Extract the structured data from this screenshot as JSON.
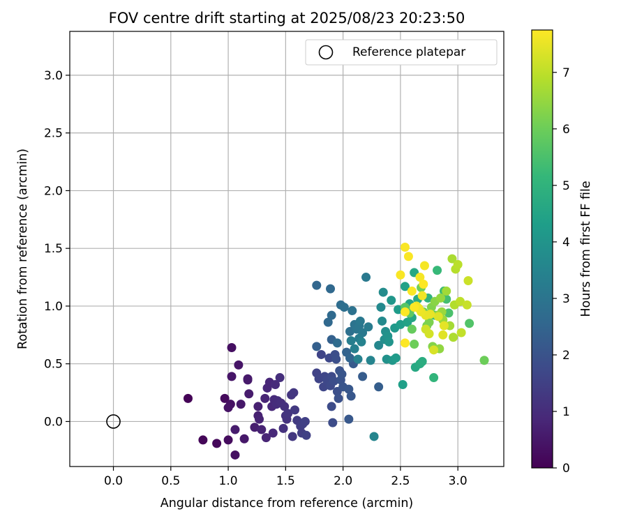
{
  "chart_data": {
    "type": "scatter",
    "title": "FOV centre drift starting at 2025/08/23 20:23:50",
    "xlabel": "Angular distance from reference (arcmin)",
    "ylabel": "Rotation from reference (arcmin)",
    "xlim": [
      -0.38,
      3.4
    ],
    "ylim": [
      -0.39,
      3.38
    ],
    "xticks": [
      "0.0",
      "0.5",
      "1.0",
      "1.5",
      "2.0",
      "2.5",
      "3.0"
    ],
    "xtick_values": [
      0,
      0.5,
      1,
      1.5,
      2,
      2.5,
      3
    ],
    "yticks": [
      "0.0",
      "0.5",
      "1.0",
      "1.5",
      "2.0",
      "2.5",
      "3.0"
    ],
    "ytick_values": [
      0,
      0.5,
      1,
      1.5,
      2,
      2.5,
      3
    ],
    "grid": true,
    "legend": {
      "position": "upper right",
      "entries": [
        "Reference platepar"
      ]
    },
    "reference_point": {
      "x": 0.0,
      "y": 0.0,
      "marker": "open circle"
    },
    "colorbar": {
      "label": "Hours from first FF file",
      "colormap": "viridis",
      "range": [
        0,
        7.75
      ],
      "ticks": [
        "0",
        "1",
        "2",
        "3",
        "4",
        "5",
        "6",
        "7"
      ],
      "tick_values": [
        0,
        1,
        2,
        3,
        4,
        5,
        6,
        7
      ]
    },
    "colormap_stops": [
      "#440154",
      "#482878",
      "#3e4989",
      "#31688e",
      "#26828e",
      "#1f9e89",
      "#35b779",
      "#6ece58",
      "#b5de2b",
      "#fde725"
    ],
    "points": [
      {
        "x": 0.65,
        "y": 0.2,
        "h": 0.05
      },
      {
        "x": 0.78,
        "y": -0.16,
        "h": 0.1
      },
      {
        "x": 0.9,
        "y": -0.19,
        "h": 0.15
      },
      {
        "x": 0.97,
        "y": 0.2,
        "h": 0.2
      },
      {
        "x": 1.0,
        "y": -0.16,
        "h": 0.25
      },
      {
        "x": 1.03,
        "y": 0.64,
        "h": 0.3
      },
      {
        "x": 1.06,
        "y": -0.29,
        "h": 0.3
      },
      {
        "x": 1.02,
        "y": 0.15,
        "h": 0.35
      },
      {
        "x": 1.0,
        "y": 0.12,
        "h": 0.4
      },
      {
        "x": 1.03,
        "y": 0.39,
        "h": 0.45
      },
      {
        "x": 1.09,
        "y": 0.49,
        "h": 0.45
      },
      {
        "x": 1.11,
        "y": 0.15,
        "h": 0.5
      },
      {
        "x": 1.14,
        "y": -0.15,
        "h": 0.5
      },
      {
        "x": 1.17,
        "y": 0.37,
        "h": 0.55
      },
      {
        "x": 1.17,
        "y": 0.36,
        "h": 0.55
      },
      {
        "x": 1.18,
        "y": 0.24,
        "h": 0.6
      },
      {
        "x": 1.06,
        "y": -0.07,
        "h": 0.6
      },
      {
        "x": 1.23,
        "y": -0.05,
        "h": 0.65
      },
      {
        "x": 1.26,
        "y": 0.13,
        "h": 0.7
      },
      {
        "x": 1.26,
        "y": 0.05,
        "h": 0.7
      },
      {
        "x": 1.27,
        "y": 0.02,
        "h": 0.75
      },
      {
        "x": 1.29,
        "y": -0.07,
        "h": 0.75
      },
      {
        "x": 1.32,
        "y": 0.2,
        "h": 0.8
      },
      {
        "x": 1.33,
        "y": -0.14,
        "h": 0.8
      },
      {
        "x": 1.34,
        "y": 0.29,
        "h": 0.85
      },
      {
        "x": 1.36,
        "y": 0.34,
        "h": 0.85
      },
      {
        "x": 1.38,
        "y": 0.13,
        "h": 0.9
      },
      {
        "x": 1.39,
        "y": -0.1,
        "h": 0.9
      },
      {
        "x": 1.4,
        "y": 0.19,
        "h": 0.95
      },
      {
        "x": 1.41,
        "y": 0.32,
        "h": 0.95
      },
      {
        "x": 1.42,
        "y": 0.15,
        "h": 1.0
      },
      {
        "x": 1.43,
        "y": 0.18,
        "h": 1.0
      },
      {
        "x": 1.45,
        "y": 0.38,
        "h": 1.05
      },
      {
        "x": 1.46,
        "y": 0.16,
        "h": 1.05
      },
      {
        "x": 1.48,
        "y": -0.06,
        "h": 1.1
      },
      {
        "x": 1.49,
        "y": 0.13,
        "h": 1.1
      },
      {
        "x": 1.5,
        "y": 0.05,
        "h": 1.15
      },
      {
        "x": 1.51,
        "y": 0.02,
        "h": 1.15
      },
      {
        "x": 1.52,
        "y": 0.07,
        "h": 1.2
      },
      {
        "x": 1.55,
        "y": 0.23,
        "h": 1.2
      },
      {
        "x": 1.56,
        "y": -0.13,
        "h": 1.25
      },
      {
        "x": 1.57,
        "y": 0.25,
        "h": 1.25
      },
      {
        "x": 1.58,
        "y": 0.1,
        "h": 1.3
      },
      {
        "x": 1.6,
        "y": 0.01,
        "h": 1.35
      },
      {
        "x": 1.63,
        "y": -0.04,
        "h": 1.4
      },
      {
        "x": 1.64,
        "y": -0.1,
        "h": 1.4
      },
      {
        "x": 1.65,
        "y": -0.02,
        "h": 1.45
      },
      {
        "x": 1.67,
        "y": 0.0,
        "h": 1.5
      },
      {
        "x": 1.68,
        "y": -0.12,
        "h": 1.5
      },
      {
        "x": 1.77,
        "y": 0.42,
        "h": 1.55
      },
      {
        "x": 1.79,
        "y": 0.37,
        "h": 1.6
      },
      {
        "x": 1.81,
        "y": 0.58,
        "h": 1.6
      },
      {
        "x": 1.83,
        "y": 0.3,
        "h": 1.65
      },
      {
        "x": 1.84,
        "y": 0.39,
        "h": 1.65
      },
      {
        "x": 1.86,
        "y": 0.36,
        "h": 1.7
      },
      {
        "x": 1.88,
        "y": 0.55,
        "h": 1.7
      },
      {
        "x": 1.89,
        "y": 0.31,
        "h": 1.75
      },
      {
        "x": 1.9,
        "y": 0.39,
        "h": 1.75
      },
      {
        "x": 1.9,
        "y": 0.13,
        "h": 1.8
      },
      {
        "x": 1.91,
        "y": -0.01,
        "h": 1.8
      },
      {
        "x": 1.92,
        "y": 0.35,
        "h": 1.85
      },
      {
        "x": 1.93,
        "y": 0.58,
        "h": 1.85
      },
      {
        "x": 1.94,
        "y": 0.54,
        "h": 1.9
      },
      {
        "x": 1.95,
        "y": 0.26,
        "h": 1.9
      },
      {
        "x": 1.96,
        "y": 0.2,
        "h": 1.95
      },
      {
        "x": 1.97,
        "y": 0.44,
        "h": 2.0
      },
      {
        "x": 1.98,
        "y": 0.36,
        "h": 2.0
      },
      {
        "x": 1.99,
        "y": 0.41,
        "h": 2.05
      },
      {
        "x": 2.0,
        "y": 0.3,
        "h": 2.05
      },
      {
        "x": 2.05,
        "y": 0.28,
        "h": 2.1
      },
      {
        "x": 2.07,
        "y": 0.22,
        "h": 2.1
      },
      {
        "x": 2.05,
        "y": 0.02,
        "h": 2.15
      },
      {
        "x": 2.09,
        "y": 0.5,
        "h": 2.2
      },
      {
        "x": 2.17,
        "y": 0.39,
        "h": 2.25
      },
      {
        "x": 2.31,
        "y": 0.3,
        "h": 2.3
      },
      {
        "x": 1.77,
        "y": 0.65,
        "h": 2.35
      },
      {
        "x": 1.9,
        "y": 0.71,
        "h": 2.4
      },
      {
        "x": 2.03,
        "y": 0.6,
        "h": 2.45
      },
      {
        "x": 2.06,
        "y": 0.55,
        "h": 2.5
      },
      {
        "x": 1.77,
        "y": 1.18,
        "h": 2.55
      },
      {
        "x": 1.87,
        "y": 0.86,
        "h": 2.6
      },
      {
        "x": 1.89,
        "y": 1.15,
        "h": 2.6
      },
      {
        "x": 1.9,
        "y": 0.92,
        "h": 2.65
      },
      {
        "x": 1.95,
        "y": 0.68,
        "h": 2.7
      },
      {
        "x": 1.98,
        "y": 1.01,
        "h": 2.75
      },
      {
        "x": 2.01,
        "y": 0.99,
        "h": 2.8
      },
      {
        "x": 2.06,
        "y": 0.78,
        "h": 2.85
      },
      {
        "x": 2.08,
        "y": 0.96,
        "h": 2.9
      },
      {
        "x": 2.1,
        "y": 0.84,
        "h": 2.95
      },
      {
        "x": 2.12,
        "y": 0.8,
        "h": 3.0
      },
      {
        "x": 2.14,
        "y": 0.83,
        "h": 3.05
      },
      {
        "x": 2.15,
        "y": 0.87,
        "h": 3.1
      },
      {
        "x": 2.17,
        "y": 0.77,
        "h": 3.15
      },
      {
        "x": 2.2,
        "y": 1.25,
        "h": 3.15
      },
      {
        "x": 2.22,
        "y": 0.82,
        "h": 3.2
      },
      {
        "x": 2.14,
        "y": 0.72,
        "h": 3.25
      },
      {
        "x": 2.07,
        "y": 0.7,
        "h": 3.3
      },
      {
        "x": 2.1,
        "y": 0.63,
        "h": 3.35
      },
      {
        "x": 2.13,
        "y": 0.54,
        "h": 3.4
      },
      {
        "x": 2.16,
        "y": 0.69,
        "h": 3.45
      },
      {
        "x": 2.24,
        "y": 0.53,
        "h": 3.5
      },
      {
        "x": 2.27,
        "y": -0.13,
        "h": 3.55
      },
      {
        "x": 2.31,
        "y": 0.66,
        "h": 3.6
      },
      {
        "x": 2.33,
        "y": 0.99,
        "h": 3.65
      },
      {
        "x": 2.34,
        "y": 0.87,
        "h": 3.7
      },
      {
        "x": 2.35,
        "y": 1.12,
        "h": 3.75
      },
      {
        "x": 2.36,
        "y": 0.71,
        "h": 3.8
      },
      {
        "x": 2.37,
        "y": 0.78,
        "h": 3.85
      },
      {
        "x": 2.38,
        "y": 0.54,
        "h": 3.9
      },
      {
        "x": 2.39,
        "y": 0.74,
        "h": 3.95
      },
      {
        "x": 2.4,
        "y": 0.69,
        "h": 4.0
      },
      {
        "x": 2.42,
        "y": 1.05,
        "h": 4.05
      },
      {
        "x": 2.43,
        "y": 0.53,
        "h": 4.1
      },
      {
        "x": 2.45,
        "y": 0.81,
        "h": 4.15
      },
      {
        "x": 2.46,
        "y": 0.55,
        "h": 4.2
      },
      {
        "x": 2.48,
        "y": 0.97,
        "h": 4.25
      },
      {
        "x": 2.5,
        "y": 0.84,
        "h": 4.3
      },
      {
        "x": 2.52,
        "y": 0.32,
        "h": 4.35
      },
      {
        "x": 2.54,
        "y": 1.17,
        "h": 4.4
      },
      {
        "x": 2.56,
        "y": 0.86,
        "h": 4.45
      },
      {
        "x": 2.58,
        "y": 1.02,
        "h": 4.5
      },
      {
        "x": 2.6,
        "y": 0.9,
        "h": 4.55
      },
      {
        "x": 2.62,
        "y": 1.29,
        "h": 4.6
      },
      {
        "x": 2.63,
        "y": 0.47,
        "h": 4.65
      },
      {
        "x": 2.65,
        "y": 1.06,
        "h": 4.7
      },
      {
        "x": 2.67,
        "y": 0.5,
        "h": 4.75
      },
      {
        "x": 2.69,
        "y": 0.52,
        "h": 4.8
      },
      {
        "x": 2.72,
        "y": 0.93,
        "h": 4.9
      },
      {
        "x": 2.74,
        "y": 1.07,
        "h": 5.0
      },
      {
        "x": 2.79,
        "y": 0.38,
        "h": 5.05
      },
      {
        "x": 2.8,
        "y": 0.92,
        "h": 5.1
      },
      {
        "x": 2.82,
        "y": 1.31,
        "h": 5.2
      },
      {
        "x": 2.88,
        "y": 1.13,
        "h": 5.3
      },
      {
        "x": 2.9,
        "y": 1.06,
        "h": 5.4
      },
      {
        "x": 2.92,
        "y": 0.94,
        "h": 5.5
      },
      {
        "x": 3.1,
        "y": 0.85,
        "h": 5.6
      },
      {
        "x": 2.54,
        "y": 0.99,
        "h": 5.7
      },
      {
        "x": 2.58,
        "y": 0.94,
        "h": 5.8
      },
      {
        "x": 2.6,
        "y": 0.8,
        "h": 5.9
      },
      {
        "x": 2.62,
        "y": 0.67,
        "h": 6.0
      },
      {
        "x": 2.68,
        "y": 1.16,
        "h": 6.05
      },
      {
        "x": 2.7,
        "y": 0.95,
        "h": 6.1
      },
      {
        "x": 2.73,
        "y": 0.83,
        "h": 6.15
      },
      {
        "x": 2.75,
        "y": 0.86,
        "h": 6.2
      },
      {
        "x": 2.77,
        "y": 0.99,
        "h": 6.25
      },
      {
        "x": 2.78,
        "y": 0.65,
        "h": 6.3
      },
      {
        "x": 2.8,
        "y": 1.04,
        "h": 6.35
      },
      {
        "x": 2.82,
        "y": 0.92,
        "h": 6.4
      },
      {
        "x": 2.84,
        "y": 0.63,
        "h": 6.45
      },
      {
        "x": 2.85,
        "y": 1.07,
        "h": 6.5
      },
      {
        "x": 2.86,
        "y": 0.95,
        "h": 6.55
      },
      {
        "x": 2.87,
        "y": 0.88,
        "h": 6.6
      },
      {
        "x": 2.9,
        "y": 1.13,
        "h": 6.65
      },
      {
        "x": 2.93,
        "y": 0.83,
        "h": 6.7
      },
      {
        "x": 2.95,
        "y": 1.41,
        "h": 6.75
      },
      {
        "x": 2.96,
        "y": 0.73,
        "h": 6.8
      },
      {
        "x": 2.97,
        "y": 1.01,
        "h": 6.85
      },
      {
        "x": 2.98,
        "y": 1.32,
        "h": 6.9
      },
      {
        "x": 3.0,
        "y": 1.36,
        "h": 6.95
      },
      {
        "x": 3.02,
        "y": 1.04,
        "h": 7.0
      },
      {
        "x": 3.03,
        "y": 0.77,
        "h": 7.05
      },
      {
        "x": 3.08,
        "y": 1.01,
        "h": 7.1
      },
      {
        "x": 3.09,
        "y": 1.22,
        "h": 7.15
      },
      {
        "x": 3.23,
        "y": 0.53,
        "h": 6.0
      },
      {
        "x": 2.72,
        "y": 0.8,
        "h": 7.2
      },
      {
        "x": 2.75,
        "y": 0.76,
        "h": 7.25
      },
      {
        "x": 2.79,
        "y": 0.62,
        "h": 7.3
      },
      {
        "x": 2.83,
        "y": 0.91,
        "h": 7.35
      },
      {
        "x": 2.87,
        "y": 0.75,
        "h": 7.4
      },
      {
        "x": 2.88,
        "y": 0.83,
        "h": 7.45
      },
      {
        "x": 2.76,
        "y": 0.93,
        "h": 7.5
      },
      {
        "x": 2.72,
        "y": 0.92,
        "h": 7.5
      },
      {
        "x": 2.68,
        "y": 0.95,
        "h": 7.55
      },
      {
        "x": 2.64,
        "y": 1.0,
        "h": 7.55
      },
      {
        "x": 2.66,
        "y": 0.98,
        "h": 7.6
      },
      {
        "x": 2.69,
        "y": 1.09,
        "h": 7.6
      },
      {
        "x": 2.67,
        "y": 1.25,
        "h": 7.65
      },
      {
        "x": 2.71,
        "y": 1.35,
        "h": 7.65
      },
      {
        "x": 2.57,
        "y": 1.43,
        "h": 7.7
      },
      {
        "x": 2.54,
        "y": 1.51,
        "h": 7.7
      },
      {
        "x": 2.5,
        "y": 1.27,
        "h": 7.7
      },
      {
        "x": 2.6,
        "y": 1.13,
        "h": 7.72
      },
      {
        "x": 2.62,
        "y": 0.99,
        "h": 7.72
      },
      {
        "x": 2.54,
        "y": 0.95,
        "h": 7.74
      },
      {
        "x": 2.54,
        "y": 0.68,
        "h": 7.74
      },
      {
        "x": 2.7,
        "y": 1.19,
        "h": 7.75
      }
    ]
  }
}
